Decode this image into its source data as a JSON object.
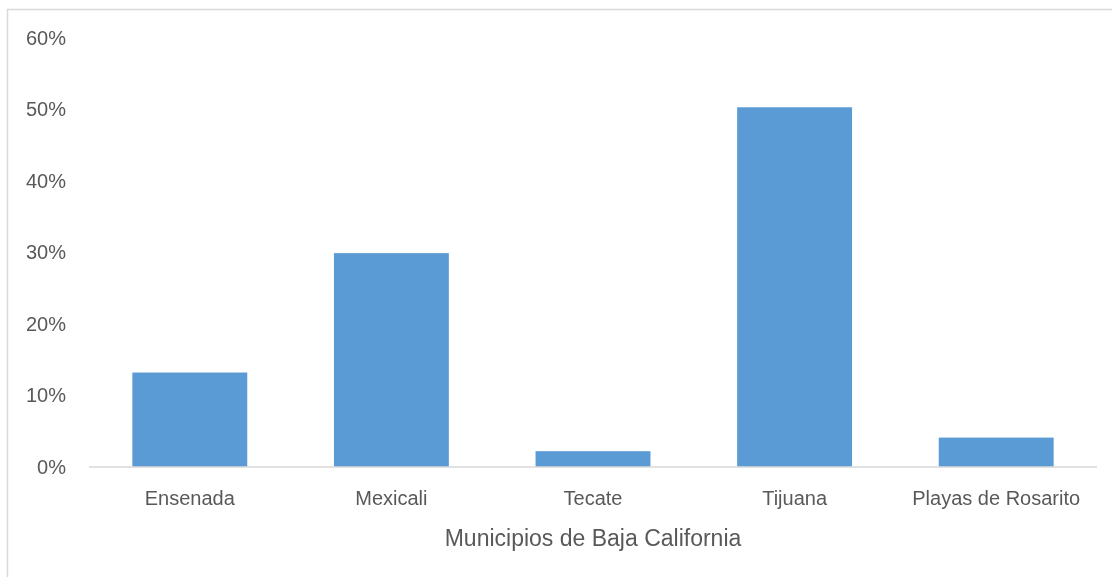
{
  "chart_data": {
    "type": "bar",
    "xlabel": "Municipios de Baja California",
    "categories": [
      "Ensenada",
      "Mexicali",
      "Tecate",
      "Tijuana",
      "Playas de Rosarito"
    ],
    "values": [
      13.2,
      29.9,
      2.2,
      50.3,
      4.1
    ],
    "color": "#5b9bd5",
    "ylim": [
      0,
      60
    ],
    "yticks": [
      {
        "value": 0,
        "label": "0%"
      },
      {
        "value": 10,
        "label": "10%"
      },
      {
        "value": 20,
        "label": "20%"
      },
      {
        "value": 30,
        "label": "30%"
      },
      {
        "value": 40,
        "label": "40%"
      },
      {
        "value": 50,
        "label": "50%"
      },
      {
        "value": 60,
        "label": "60%"
      }
    ]
  }
}
